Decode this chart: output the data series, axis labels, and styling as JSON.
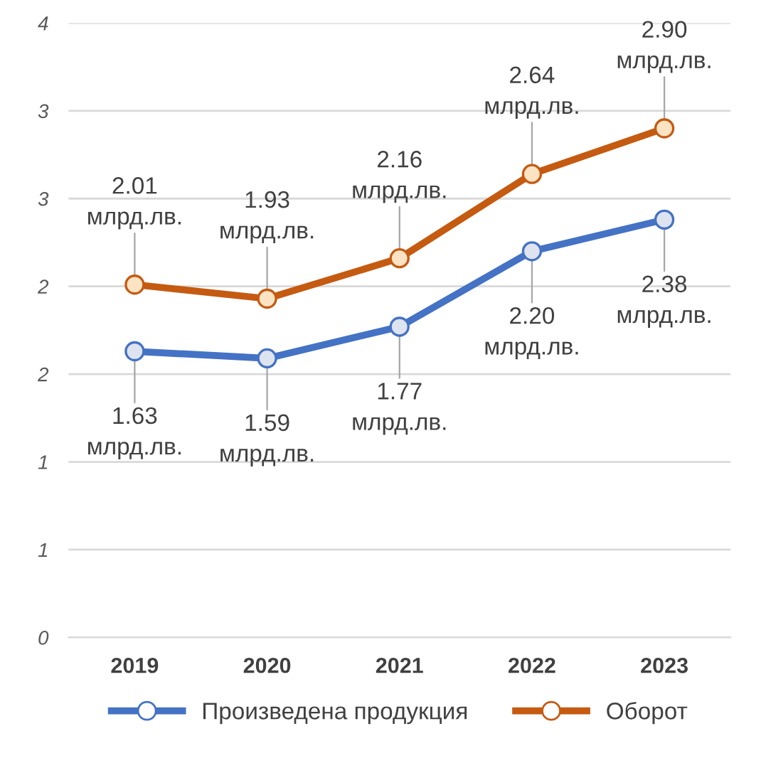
{
  "chart_data": {
    "type": "line",
    "categories": [
      "2019",
      "2020",
      "2021",
      "2022",
      "2023"
    ],
    "series": [
      {
        "name": "Произведена продукция",
        "color": "#4472c4",
        "values": [
          1.63,
          1.59,
          1.77,
          2.2,
          2.38
        ],
        "value_labels": [
          "1.63\nмлрд.лв.",
          "1.59\nмлрд.лв.",
          "1.77\nмлрд.лв.",
          "2.20\nмлрд.лв.",
          "2.38\nмлрд.лв."
        ]
      },
      {
        "name": "Оборот",
        "color": "#c55a11",
        "values": [
          2.01,
          1.93,
          2.16,
          2.64,
          2.9
        ],
        "value_labels": [
          "2.01\nмлрд.лв.",
          "1.93\nмлрд.лв.",
          "2.16\nмлрд.лв.",
          "2.64\nмлрд.лв.",
          "2.90\nмлрд.лв."
        ]
      }
    ],
    "ylim": [
      0,
      3.5
    ],
    "yticks": [
      0,
      {
        "value": 0.5,
        "label": "1"
      },
      1,
      {
        "value": 1.5,
        "label": "2"
      },
      2,
      {
        "value": 2.5,
        "label": "3"
      },
      3,
      {
        "value": 3.5,
        "label": "4"
      }
    ],
    "grid": "y",
    "legend": "bottom",
    "marker": "circle",
    "line_style": "solid"
  }
}
